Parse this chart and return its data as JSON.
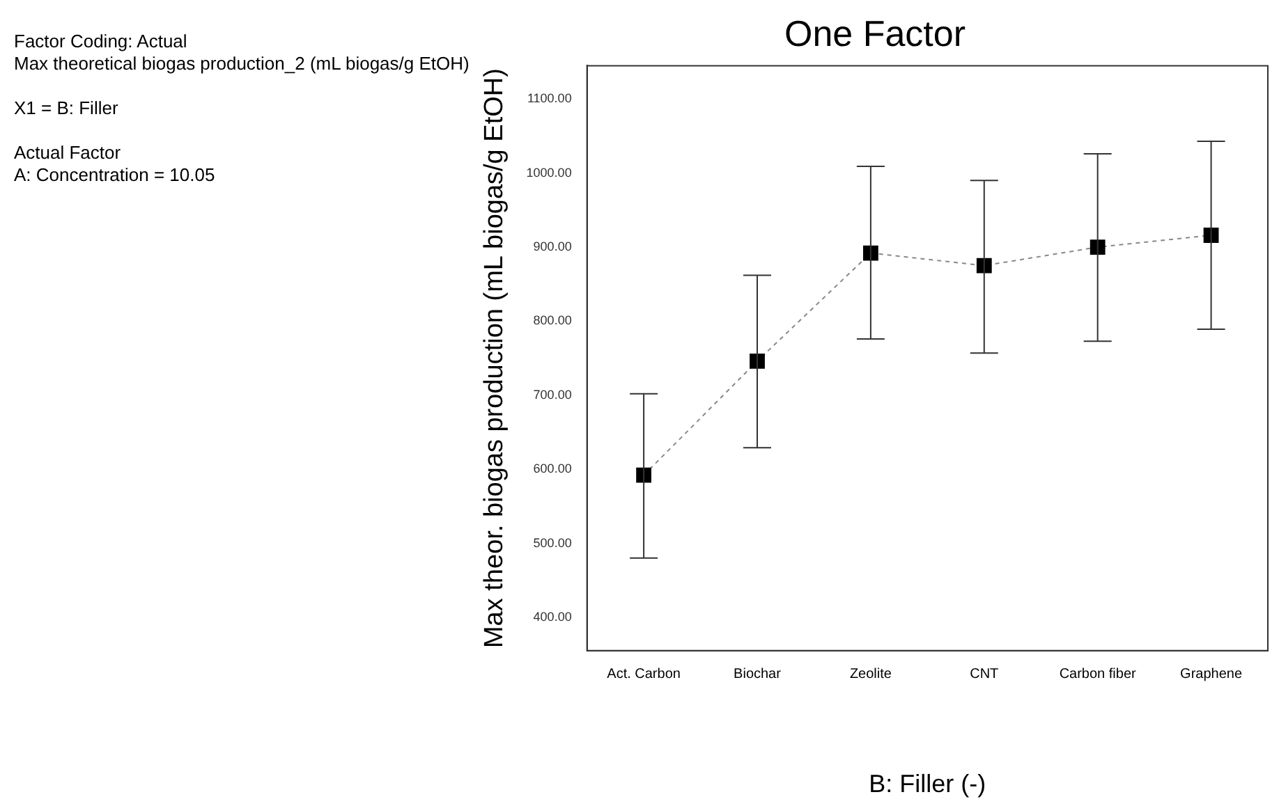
{
  "chart_data": {
    "type": "line",
    "title": "One Factor",
    "xlabel": "B: Filler (-)",
    "ylabel": "Max theor. biogas production (mL biogas/g EtOH)",
    "annotations": [
      "Factor Coding: Actual",
      "Max theoretical biogas production_2 (mL biogas/g EtOH)",
      "X1 = B: Filler",
      "Actual Factor",
      "A: Concentration = 10.05"
    ],
    "categories": [
      "Act. Carbon",
      "Biochar",
      "Zeolite",
      "CNT",
      "Carbon fiber",
      "Graphene"
    ],
    "series": [
      {
        "color": "#000000",
        "values": [
          592,
          746,
          892,
          875,
          900,
          916
        ],
        "errors": [
          [
            480,
            702
          ],
          [
            629,
            862
          ],
          [
            776,
            1009
          ],
          [
            757,
            990
          ],
          [
            773,
            1026
          ],
          [
            789,
            1043
          ]
        ]
      }
    ],
    "ylim": [
      355,
      1145
    ],
    "yticks": [
      {
        "value": 400,
        "label": "400.00"
      },
      {
        "value": 500,
        "label": "500.00"
      },
      {
        "value": 600,
        "label": "600.00"
      },
      {
        "value": 700,
        "label": "700.00"
      },
      {
        "value": 800,
        "label": "800.00"
      },
      {
        "value": 900,
        "label": "900.00"
      },
      {
        "value": 1000,
        "label": "1000.00"
      },
      {
        "value": 1100,
        "label": "1100.00"
      }
    ],
    "grid": false,
    "legend": false,
    "marker": "square",
    "line_style": "dashed"
  }
}
